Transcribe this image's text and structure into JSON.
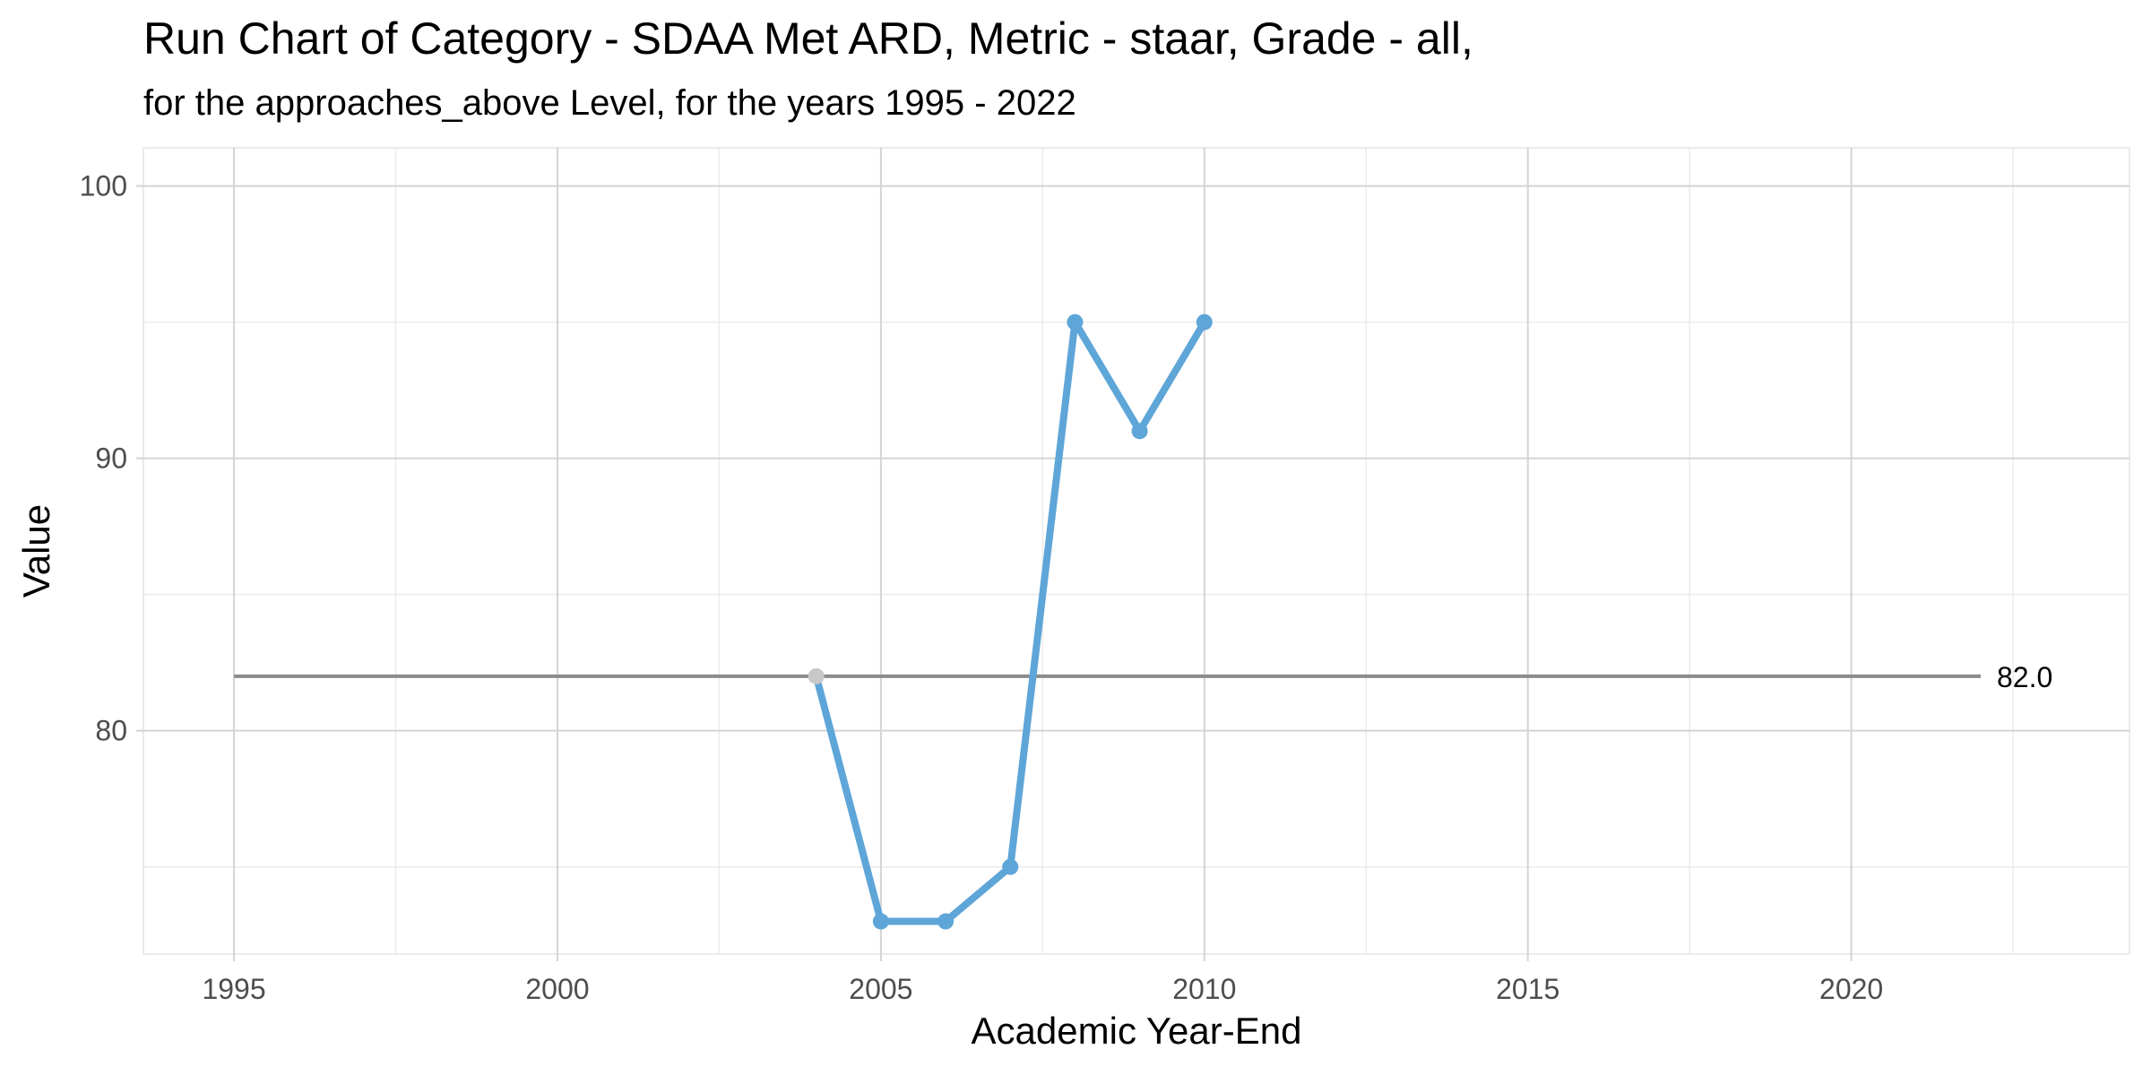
{
  "chart_data": {
    "type": "line",
    "title": "Run Chart of Category - SDAA Met ARD, Metric - staar, Grade - all,",
    "subtitle": "for the approaches_above Level, for the years 1995 - 2022",
    "xlabel": "Academic Year-End",
    "ylabel": "Value",
    "xlim": [
      1993.6,
      2024.3
    ],
    "ylim": [
      71.8,
      101.4
    ],
    "x_ticks": [
      1995,
      2000,
      2005,
      2010,
      2015,
      2020
    ],
    "y_ticks": [
      80,
      90,
      100
    ],
    "grid": true,
    "series": [
      {
        "x": [
          2004,
          2005,
          2006,
          2007,
          2008,
          2009,
          2010
        ],
        "y": [
          82,
          73,
          73,
          75,
          95,
          91,
          95
        ],
        "color": "#5ea5d8",
        "first_point_color": "#c8c8c8"
      }
    ],
    "reference_line": {
      "y": 82.0,
      "x_start": 1995,
      "x_end": 2022,
      "label": "82.0",
      "color": "#8c8c8c"
    }
  }
}
